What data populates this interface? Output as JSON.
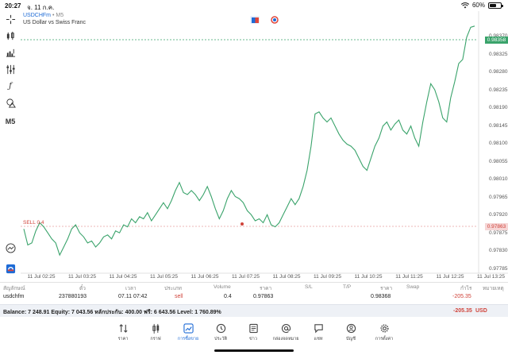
{
  "status_bar": {
    "time": "20:27",
    "date": "จ. 11 ก.ค.",
    "battery": "60%",
    "battery_level": 0.6
  },
  "chart": {
    "symbol": "USDCHFm",
    "separator": "•",
    "timeframe": "M5",
    "description": "US Dollar vs Swiss Franc",
    "current_price": "0.98358",
    "sell_line_label": "SELL 0.4",
    "sell_line_price": "0.97863",
    "price_labels": [
      "0.98370",
      "0.98325",
      "0.98280",
      "0.98235",
      "0.98190",
      "0.98145",
      "0.98100",
      "0.98055",
      "0.98010",
      "0.97965",
      "0.97920",
      "0.97875",
      "0.97830",
      "0.97785"
    ],
    "time_labels": [
      "11 Jul 02:25",
      "11 Jul 03:25",
      "11 Jul 04:25",
      "11 Jul 05:25",
      "11 Jul 06:25",
      "11 Jul 07:25",
      "11 Jul 08:25",
      "11 Jul 09:25",
      "11 Jul 10:25",
      "11 Jul 11:25",
      "11 Jul 12:25",
      "11 Jul 13:25"
    ],
    "line_color": "#3aa36b",
    "sell_color": "#d0433a"
  },
  "chart_data": {
    "type": "line",
    "ylim": [
      0.97745,
      0.98395
    ],
    "values": [
      0.97855,
      0.97815,
      0.9782,
      0.9785,
      0.9787,
      0.9786,
      0.97845,
      0.9783,
      0.9782,
      0.9779,
      0.9781,
      0.9783,
      0.97855,
      0.97865,
      0.97845,
      0.97835,
      0.9782,
      0.97825,
      0.9781,
      0.9782,
      0.97835,
      0.9784,
      0.9783,
      0.9785,
      0.97845,
      0.97865,
      0.9786,
      0.9788,
      0.9787,
      0.97885,
      0.9788,
      0.97895,
      0.97875,
      0.9789,
      0.97905,
      0.9792,
      0.97905,
      0.97925,
      0.9795,
      0.9797,
      0.97945,
      0.9794,
      0.9795,
      0.9794,
      0.97925,
      0.9794,
      0.9796,
      0.97935,
      0.97905,
      0.9788,
      0.979,
      0.9793,
      0.9795,
      0.97935,
      0.9793,
      0.9792,
      0.979,
      0.9789,
      0.97875,
      0.9788,
      0.9787,
      0.9789,
      0.97865,
      0.9786,
      0.9787,
      0.9789,
      0.9791,
      0.9793,
      0.97915,
      0.9793,
      0.9796,
      0.98,
      0.9806,
      0.9814,
      0.98145,
      0.9813,
      0.9812,
      0.9813,
      0.9811,
      0.9809,
      0.98075,
      0.98065,
      0.9806,
      0.9805,
      0.9803,
      0.9801,
      0.98,
      0.9803,
      0.9806,
      0.9808,
      0.9811,
      0.9812,
      0.981,
      0.98115,
      0.98125,
      0.981,
      0.9809,
      0.9811,
      0.9808,
      0.9806,
      0.9812,
      0.9817,
      0.98215,
      0.982,
      0.9817,
      0.9813,
      0.9812,
      0.9818,
      0.9822,
      0.98265,
      0.98275,
      0.9833,
      0.98355,
      0.98358
    ]
  },
  "table": {
    "headers": [
      "สัญลักษณ์",
      "ตั๋ว",
      "เวลา",
      "ประเภท",
      "Volume",
      "ราคา",
      "S/L",
      "T/P",
      "ราคา",
      "Swap",
      "กำไร",
      "หมายเหตุ"
    ],
    "row": {
      "symbol": "usdchfm",
      "ticket": "237880193",
      "time": "07.11 07:42",
      "type": "sell",
      "volume": "0.4",
      "open_price": "0.97863",
      "current_price": "0.98368",
      "profit": "-205.35"
    }
  },
  "balance": {
    "text": "Balance: 7 248.91 Equity: 7 043.56 หลักประกัน: 400.00 ฟรี: 6 643.56 Level: 1 760.89%",
    "profit": "-205.35",
    "currency": "USD"
  },
  "nav": [
    {
      "label": "ราคา",
      "icon": "quotes-arrows-icon"
    },
    {
      "label": "กราฟ",
      "icon": "candles-icon"
    },
    {
      "label": "การซื้อขาย",
      "icon": "trade-chart-icon",
      "active": true
    },
    {
      "label": "ประวัติ",
      "icon": "history-clock-icon"
    },
    {
      "label": "ข่าว",
      "icon": "news-icon"
    },
    {
      "label": "กล่องจดหมาย",
      "icon": "mailbox-at-icon"
    },
    {
      "label": "แชท",
      "icon": "chat-bubble-icon"
    },
    {
      "label": "บัญชี",
      "icon": "account-user-icon"
    },
    {
      "label": "การตั้งค่า",
      "icon": "settings-gear-icon"
    }
  ]
}
